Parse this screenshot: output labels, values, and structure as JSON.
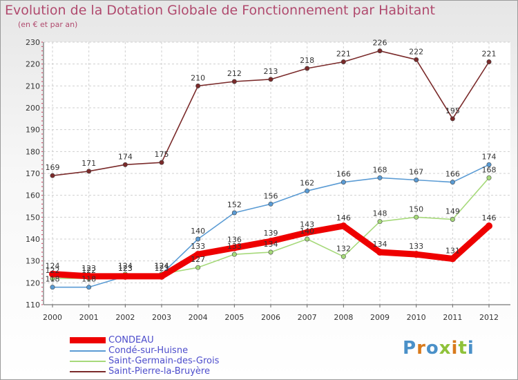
{
  "title": "Evolution de la Dotation Globale de Fonctionnement par Habitant",
  "subtitle": "(en € et par an)",
  "logo_text": "Proxiti",
  "colors": {
    "title": "#b04a6e",
    "legend_text": "#4d4dcc",
    "logo_letters": [
      "#4a90c8",
      "#d87a1c",
      "#4a90c8",
      "#8fc23a",
      "#d87a1c",
      "#8fc23a",
      "#4a90c8"
    ]
  },
  "chart_data": {
    "type": "line",
    "categories": [
      "2000",
      "2001",
      "2002",
      "2003",
      "2004",
      "2005",
      "2006",
      "2007",
      "2008",
      "2009",
      "2010",
      "2011",
      "2012"
    ],
    "ylim": [
      110,
      230
    ],
    "yticks": [
      "110",
      "120",
      "130",
      "140",
      "150",
      "160",
      "170",
      "180",
      "190",
      "200",
      "210",
      "220",
      "230"
    ],
    "grid": true,
    "legend_position": "bottom-left",
    "series": [
      {
        "name": "CONDEAU",
        "color": "#ee0000",
        "values": [
          124,
          123,
          123,
          123,
          133,
          136,
          139,
          143,
          146,
          134,
          133,
          131,
          146
        ],
        "labels": [
          "124",
          "123",
          "123",
          "123",
          "133",
          "136",
          "139",
          "143",
          "146",
          "134",
          "133",
          "131",
          "146"
        ]
      },
      {
        "name": "Condé-sur-Huisne",
        "color": "#5a9bd4",
        "values": [
          118,
          118,
          123,
          124,
          140,
          152,
          156,
          162,
          166,
          168,
          167,
          166,
          174
        ],
        "labels": [
          "118",
          "118",
          "123",
          "124",
          "140",
          "152",
          "156",
          "162",
          "166",
          "168",
          "167",
          "166",
          "174"
        ]
      },
      {
        "name": "Saint-Germain-des-Grois",
        "color": "#a6d97a",
        "values": [
          122,
          122,
          124,
          124,
          127,
          133,
          134,
          140,
          132,
          148,
          150,
          149,
          168
        ],
        "labels": [
          "122",
          "122",
          "124",
          "124",
          "127",
          "133",
          "134",
          "140",
          "132",
          "148",
          "150",
          "149",
          "168"
        ]
      },
      {
        "name": "Saint-Pierre-la-Bruyère",
        "color": "#7a2a2a",
        "values": [
          169,
          171,
          174,
          175,
          210,
          212,
          213,
          218,
          221,
          226,
          222,
          195,
          221
        ],
        "labels": [
          "169",
          "171",
          "174",
          "175",
          "210",
          "212",
          "213",
          "218",
          "221",
          "226",
          "222",
          "195",
          "221"
        ]
      }
    ]
  }
}
